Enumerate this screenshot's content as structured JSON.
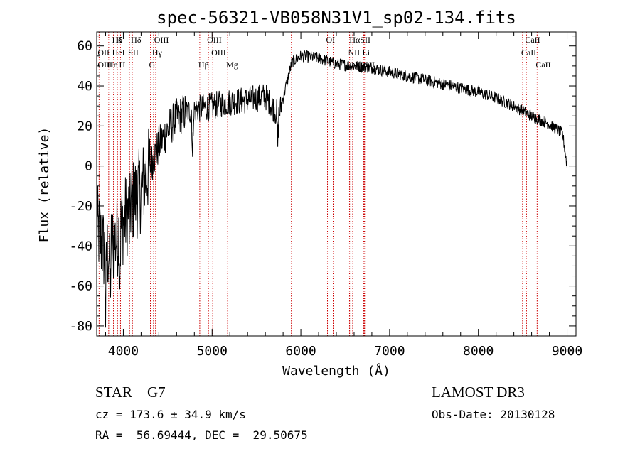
{
  "chart_data": {
    "type": "line",
    "title": "spec-56321-VB058N31V1_sp02-134.fits",
    "xlabel": "Wavelength (Å)",
    "ylabel": "Flux (relative)",
    "xlim": [
      3700,
      9100
    ],
    "ylim": [
      -85,
      67
    ],
    "xticks": [
      4000,
      5000,
      6000,
      7000,
      8000,
      9000
    ],
    "yticks": [
      -80,
      -60,
      -40,
      -20,
      0,
      20,
      40,
      60
    ],
    "grid": false,
    "line_color": "#000000",
    "marker_color": "#cc0000",
    "continuum_anchors": [
      [
        3700,
        -30
      ],
      [
        3800,
        -45
      ],
      [
        3900,
        -38
      ],
      [
        4000,
        -28
      ],
      [
        4100,
        -18
      ],
      [
        4200,
        -12
      ],
      [
        4300,
        0
      ],
      [
        4400,
        10
      ],
      [
        4500,
        18
      ],
      [
        4600,
        24
      ],
      [
        4700,
        27
      ],
      [
        4800,
        28
      ],
      [
        4900,
        29
      ],
      [
        5000,
        30
      ],
      [
        5200,
        32
      ],
      [
        5400,
        33
      ],
      [
        5600,
        35
      ],
      [
        5750,
        25
      ],
      [
        5900,
        52
      ],
      [
        6000,
        55
      ],
      [
        6200,
        54
      ],
      [
        6400,
        51
      ],
      [
        6600,
        50
      ],
      [
        6800,
        49
      ],
      [
        7000,
        47
      ],
      [
        7200,
        45
      ],
      [
        7400,
        43
      ],
      [
        7600,
        41
      ],
      [
        7800,
        39
      ],
      [
        8000,
        37
      ],
      [
        8200,
        34
      ],
      [
        8400,
        30
      ],
      [
        8600,
        25
      ],
      [
        8800,
        21
      ],
      [
        8950,
        16
      ],
      [
        9000,
        0
      ]
    ],
    "absorption_features": [
      {
        "wavelength": 3800,
        "depth": 30
      },
      {
        "wavelength": 3850,
        "depth": 25
      },
      {
        "wavelength": 3960,
        "depth": 20
      },
      {
        "wavelength": 4070,
        "depth": 10
      },
      {
        "wavelength": 4780,
        "depth": 25
      },
      {
        "wavelength": 5740,
        "depth": 15
      }
    ],
    "lines": [
      {
        "label": "Hδ",
        "wavelength": 3889,
        "row": 0
      },
      {
        "label": "K",
        "wavelength": 3934,
        "row": 0
      },
      {
        "label": "Hδ",
        "wavelength": 4102,
        "row": 0
      },
      {
        "label": "OIII",
        "wavelength": 4363,
        "row": 0
      },
      {
        "label": "OIII",
        "wavelength": 4959,
        "row": 0
      },
      {
        "label": "OI",
        "wavelength": 6300,
        "row": 0
      },
      {
        "label": "HαSII",
        "wavelength": 6563,
        "row": 0
      },
      {
        "label": "CaII",
        "wavelength": 8542,
        "row": 0
      },
      {
        "label": "OII",
        "wavelength": 3727,
        "row": 1
      },
      {
        "label": "HeI",
        "wavelength": 3889,
        "row": 1
      },
      {
        "label": "SII",
        "wavelength": 4070,
        "row": 1
      },
      {
        "label": "Hγ",
        "wavelength": 4340,
        "row": 1
      },
      {
        "label": "OIII",
        "wavelength": 5007,
        "row": 1
      },
      {
        "label": "NII",
        "wavelength": 6548,
        "row": 1
      },
      {
        "label": "Li",
        "wavelength": 6708,
        "row": 1
      },
      {
        "label": "CaII",
        "wavelength": 8498,
        "row": 1
      },
      {
        "label": "OIII",
        "wavelength": 3727,
        "row": 2
      },
      {
        "label": "Hη",
        "wavelength": 3835,
        "row": 2
      },
      {
        "label": "H",
        "wavelength": 3968,
        "row": 2
      },
      {
        "label": "G",
        "wavelength": 4305,
        "row": 2
      },
      {
        "label": "Hβ",
        "wavelength": 4861,
        "row": 2
      },
      {
        "label": "Mg",
        "wavelength": 5175,
        "row": 2
      },
      {
        "label": "NII",
        "wavelength": 6584,
        "row": 2
      },
      {
        "label": "SII",
        "wavelength": 6731,
        "row": 2
      },
      {
        "label": "CaII",
        "wavelength": 8662,
        "row": 2
      }
    ],
    "unlabeled_lines": [
      5893,
      6364,
      6717
    ]
  },
  "info": {
    "class_label": "STAR    G7",
    "cz": "cz = 173.6 ± 34.9 km/s",
    "coords": "RA =  56.69444, DEC =  29.50675",
    "survey": "LAMOST DR3",
    "obs_date": "Obs-Date: 20130128"
  }
}
